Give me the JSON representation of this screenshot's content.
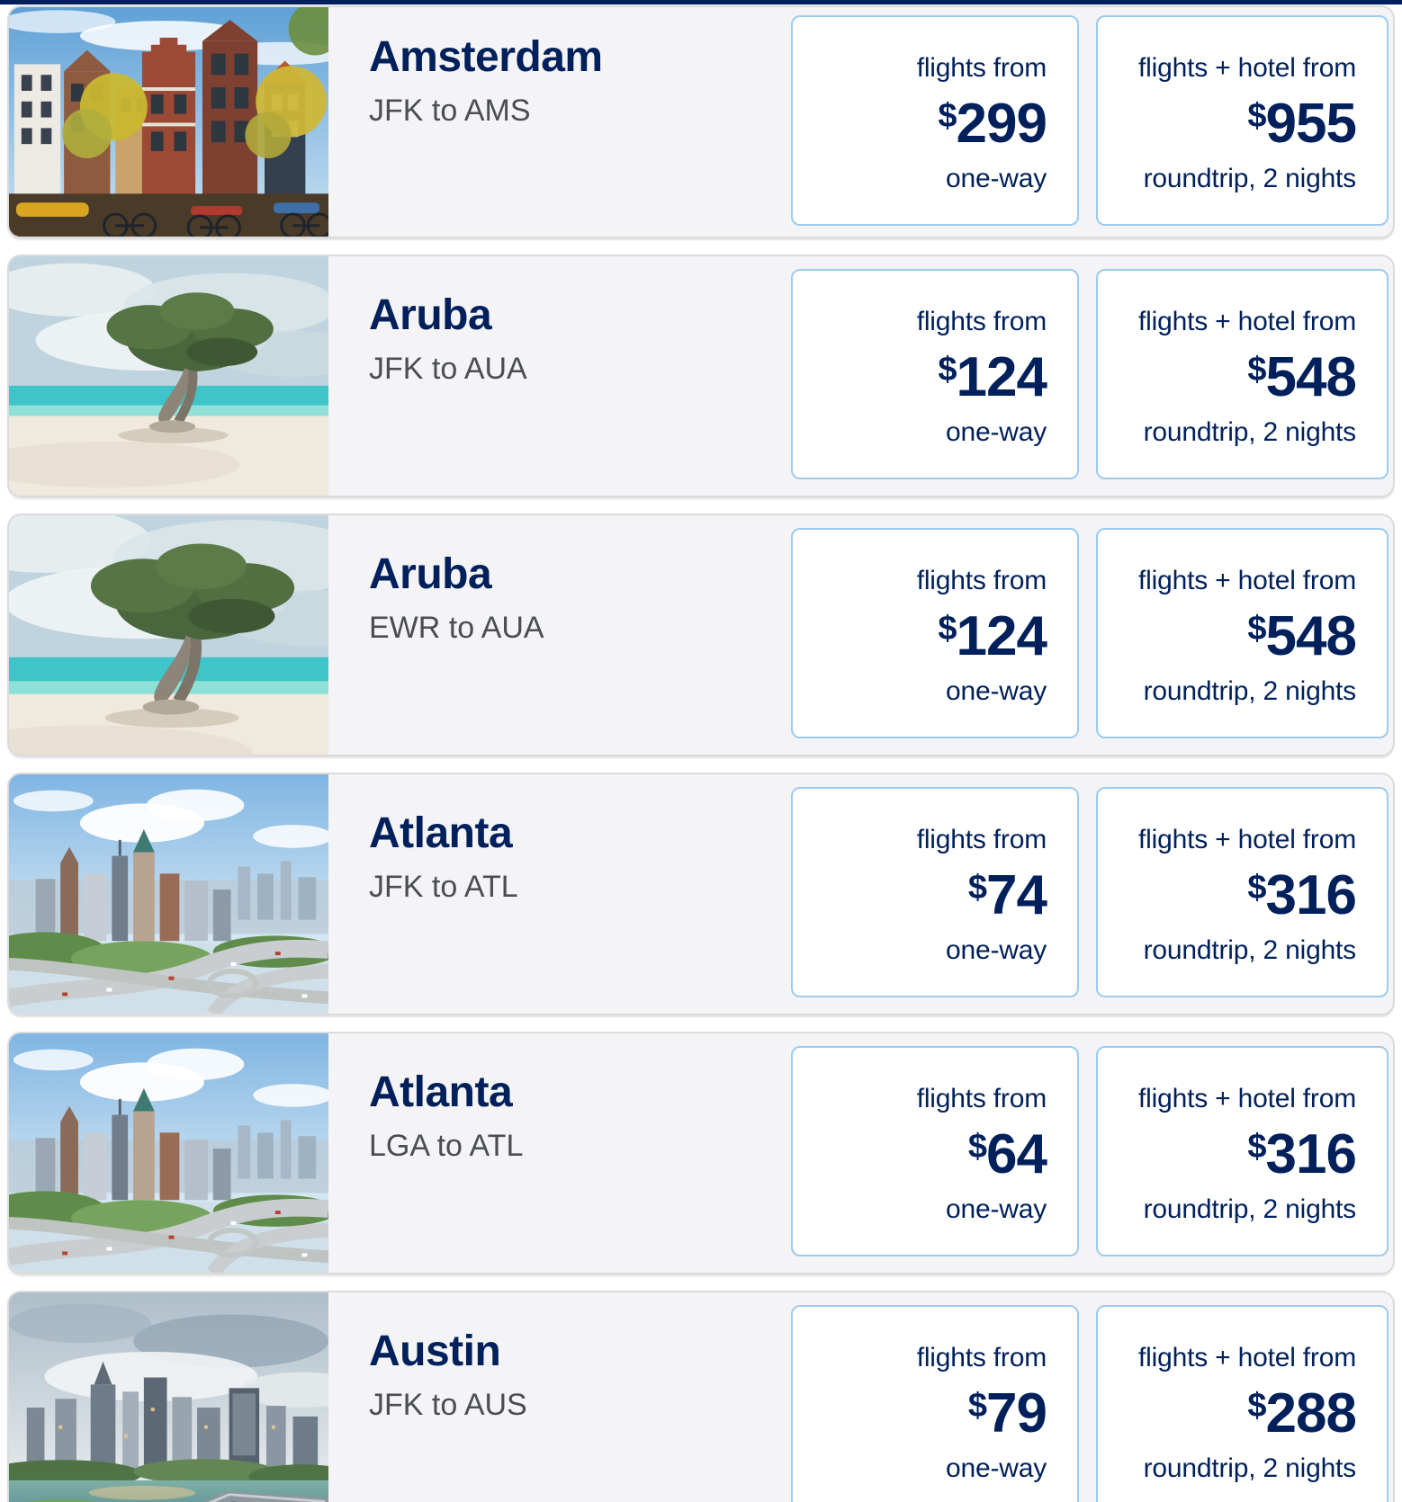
{
  "labels": {
    "flights_from": "flights from",
    "flights_hotel_from": "flights + hotel from",
    "one_way": "one-way",
    "roundtrip": "roundtrip, 2 nights",
    "currency": "$"
  },
  "colors": {
    "brand_navy": "#00205B",
    "route_gray": "#4A4D52",
    "price_card_border": "#9CCBEE",
    "row_background": "#F4F4F6",
    "row_border": "#DBDBDB",
    "page_background": "#FFFFFF"
  },
  "deals": [
    {
      "destination": "Amsterdam",
      "route": "JFK to AMS",
      "flight_price": "299",
      "package_price": "955",
      "image": "amsterdam"
    },
    {
      "destination": "Aruba",
      "route": "JFK to AUA",
      "flight_price": "124",
      "package_price": "548",
      "image": "aruba"
    },
    {
      "destination": "Aruba",
      "route": "EWR to AUA",
      "flight_price": "124",
      "package_price": "548",
      "image": "aruba_closeup"
    },
    {
      "destination": "Atlanta",
      "route": "JFK to ATL",
      "flight_price": "74",
      "package_price": "316",
      "image": "atlanta"
    },
    {
      "destination": "Atlanta",
      "route": "LGA to ATL",
      "flight_price": "64",
      "package_price": "316",
      "image": "atlanta"
    },
    {
      "destination": "Austin",
      "route": "JFK to AUS",
      "flight_price": "79",
      "package_price": "288",
      "image": "austin"
    }
  ]
}
